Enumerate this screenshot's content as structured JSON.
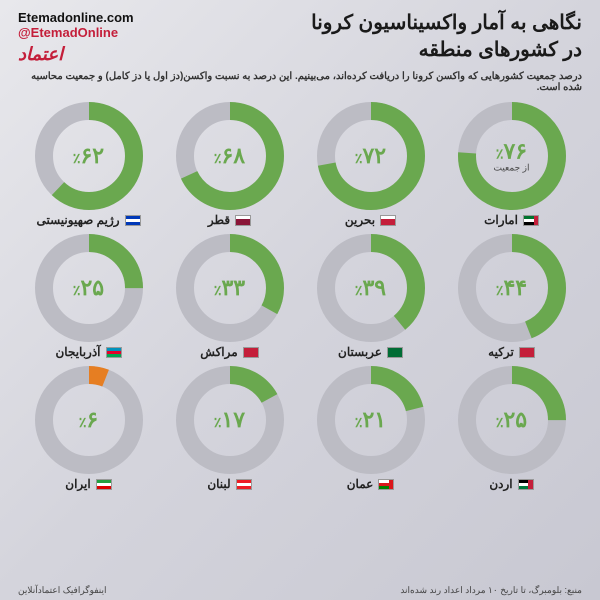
{
  "header": {
    "title_line1": "نگاهی به آمار واکسیناسیون کرونا",
    "title_line2": "در کشورهای منطقه",
    "url": "Etemadonline.com",
    "handle": "@EtemadOnline",
    "logo_text": "اعتماد"
  },
  "subtitle": "درصد جمعیت کشورهایی که واکسن کرونا را دریافت کرده‌اند، می‌بینیم. این درصد به نسبت واکسن(دز اول یا دز کامل) و جمعیت محاسبه شده است.",
  "chart_style": {
    "type": "donut-grid",
    "cols": 4,
    "rows": 3,
    "donut_size": 110,
    "donut_thickness": 18,
    "filled_color": "#6aa84f",
    "filled_color_alt": "#e67e22",
    "track_color": "#bcbcc4",
    "pct_font_size": 22,
    "pct_color": "#6aa84f",
    "label_font_size": 12,
    "label_color": "#222222",
    "background": "#e0e0e6"
  },
  "countries": [
    {
      "label": "امارات",
      "value": 76,
      "sub": "از جمعیت",
      "flag_colors": [
        "#00732f",
        "#ffffff",
        "#000000"
      ],
      "flag_left": "#c41e3a"
    },
    {
      "label": "بحرین",
      "value": 72,
      "flag_colors": [
        "#ffffff",
        "#c41e3a",
        "#c41e3a"
      ]
    },
    {
      "label": "قطر",
      "value": 68,
      "flag_colors": [
        "#ffffff",
        "#8a1538",
        "#8a1538"
      ]
    },
    {
      "label": "رژیم صهیونیستی",
      "value": 62,
      "flag_colors": [
        "#0038b8",
        "#ffffff",
        "#0038b8"
      ]
    },
    {
      "label": "ترکیه",
      "value": 44,
      "flag_colors": [
        "#c41e3a",
        "#c41e3a",
        "#c41e3a"
      ]
    },
    {
      "label": "عربستان",
      "value": 39,
      "flag_colors": [
        "#006c35",
        "#006c35",
        "#006c35"
      ]
    },
    {
      "label": "مراکش",
      "value": 33,
      "flag_colors": [
        "#c41e3a",
        "#c41e3a",
        "#c41e3a"
      ]
    },
    {
      "label": "آذربایجان",
      "value": 25,
      "flag_colors": [
        "#0092bc",
        "#e4002b",
        "#00a651"
      ]
    },
    {
      "label": "اردن",
      "value": 25,
      "flag_colors": [
        "#000000",
        "#ffffff",
        "#007a3d"
      ],
      "flag_left": "#c41e3a"
    },
    {
      "label": "عمان",
      "value": 21,
      "flag_colors": [
        "#ffffff",
        "#db161b",
        "#008000"
      ],
      "flag_left": "#db161b"
    },
    {
      "label": "لبنان",
      "value": 17,
      "flag_colors": [
        "#ed1c24",
        "#ffffff",
        "#ed1c24"
      ]
    },
    {
      "label": "ایران",
      "value": 6,
      "alt_color": true,
      "flag_colors": [
        "#239f40",
        "#ffffff",
        "#da0000"
      ]
    }
  ],
  "footer": {
    "right": "اینفوگرافیک اعتمادآنلاین",
    "left": "منبع: بلومبرگ، تا تاریخ ۱۰ مرداد  اعداد رند شده‌اند"
  }
}
